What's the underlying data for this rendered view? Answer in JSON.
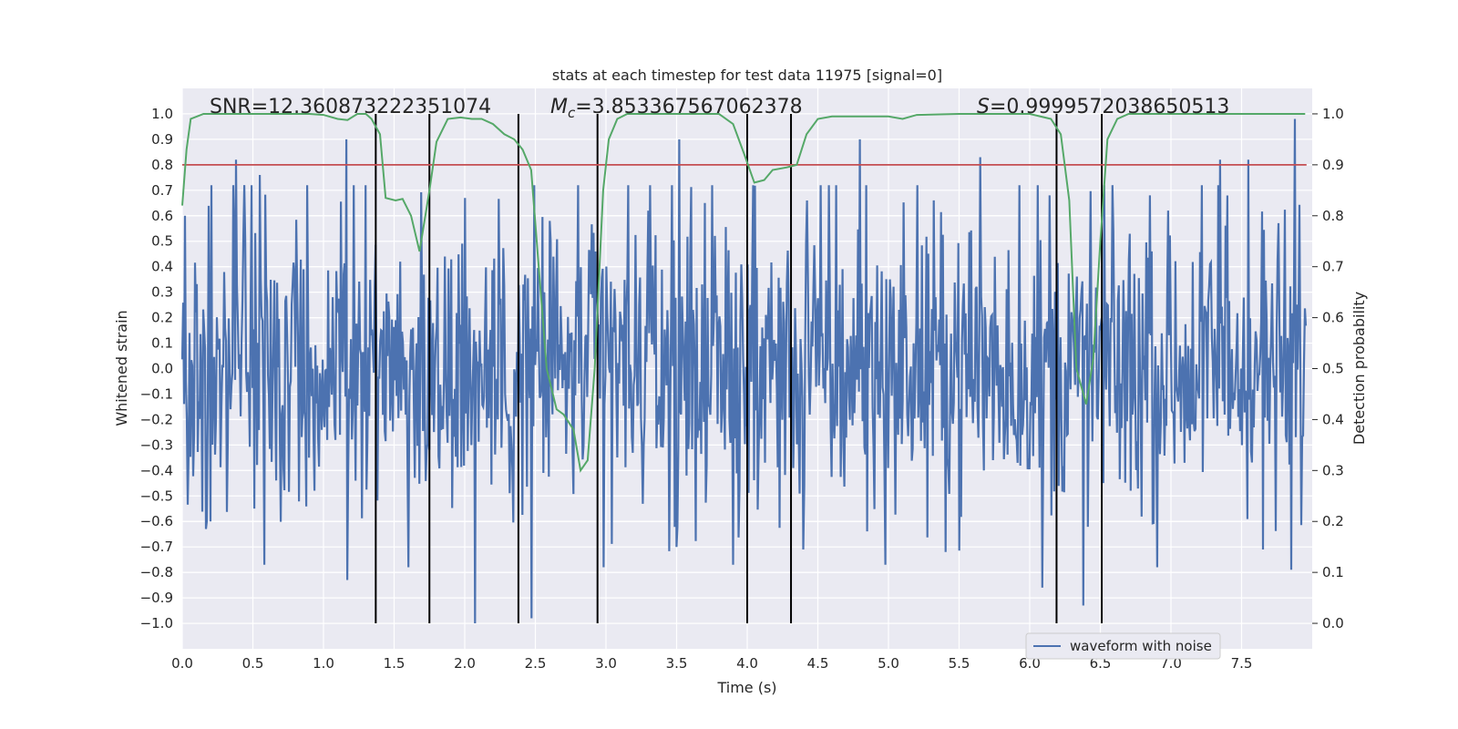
{
  "chart_data": {
    "type": "line",
    "title": "stats at each timestep for test data 11975 [signal=0]",
    "xlabel": "Time (s)",
    "ylabel": "Whitened strain",
    "y2label": "Detection probability",
    "xlim": [
      0.0,
      8.0
    ],
    "ylim": [
      -1.1,
      1.1
    ],
    "y2lim": [
      -0.05,
      1.05
    ],
    "xticks": [
      "0.0",
      "0.5",
      "1.0",
      "1.5",
      "2.0",
      "2.5",
      "3.0",
      "3.5",
      "4.0",
      "4.5",
      "5.0",
      "5.5",
      "6.0",
      "6.5",
      "7.0",
      "7.5"
    ],
    "yticks": [
      "−1.0",
      "−0.9",
      "−0.8",
      "−0.7",
      "−0.6",
      "−0.5",
      "−0.4",
      "−0.3",
      "−0.2",
      "−0.1",
      "0.0",
      "0.1",
      "0.2",
      "0.3",
      "0.4",
      "0.5",
      "0.6",
      "0.7",
      "0.8",
      "0.9",
      "1.0"
    ],
    "y2ticks": [
      "0.0",
      "0.1",
      "0.2",
      "0.3",
      "0.4",
      "0.5",
      "0.6",
      "0.7",
      "0.8",
      "0.9",
      "1.0"
    ],
    "grid": true,
    "legend": {
      "position": "lower-right",
      "entries": [
        "waveform with noise"
      ]
    },
    "annotations": {
      "snr": "SNR=12.360873222351074",
      "mc_symbol": "M",
      "mc_sub": "c",
      "mc_value": "=3.853367567062378",
      "s_symbol": "S",
      "s_value": "=0.9999572038650513"
    },
    "threshold": 0.9,
    "vertical_lines": [
      1.37,
      1.75,
      2.38,
      2.94,
      4.0,
      4.31,
      6.19,
      6.51
    ],
    "colors": {
      "waveform": "#4c72b0",
      "probability": "#55a868",
      "threshold": "#c44e52",
      "markers": "#000000",
      "background": "#eaeaf2"
    },
    "series": [
      {
        "name": "waveform with noise",
        "note_values": "dense noisy strain signal, envelope approx ±0.45 with spikes to ±1.0",
        "peaks_positive": [
          [
            0.02,
            0.6
          ],
          [
            0.38,
            0.82
          ],
          [
            0.55,
            0.76
          ],
          [
            1.16,
            0.9
          ],
          [
            1.3,
            0.72
          ],
          [
            2.0,
            0.67
          ],
          [
            2.6,
            0.58
          ],
          [
            3.3,
            0.62
          ],
          [
            3.52,
            0.9
          ],
          [
            3.7,
            0.65
          ],
          [
            4.42,
            0.66
          ],
          [
            4.8,
            0.9
          ],
          [
            5.65,
            0.83
          ],
          [
            6.14,
            0.68
          ],
          [
            6.85,
            0.68
          ],
          [
            7.35,
            0.82
          ],
          [
            7.55,
            0.82
          ],
          [
            7.88,
            0.98
          ]
        ],
        "peaks_negative": [
          [
            0.2,
            -0.6
          ],
          [
            0.58,
            -0.77
          ],
          [
            1.17,
            -0.83
          ],
          [
            1.6,
            -0.78
          ],
          [
            2.07,
            -1.0
          ],
          [
            2.47,
            -0.98
          ],
          [
            2.98,
            -0.78
          ],
          [
            3.5,
            -0.7
          ],
          [
            3.9,
            -0.77
          ],
          [
            4.4,
            -0.71
          ],
          [
            4.98,
            -0.77
          ],
          [
            6.09,
            -0.86
          ],
          [
            6.38,
            -0.93
          ],
          [
            6.9,
            -0.78
          ],
          [
            7.65,
            -0.71
          ],
          [
            7.85,
            -0.79
          ]
        ]
      },
      {
        "name": "",
        "axis": "right",
        "points": [
          [
            0.0,
            0.82
          ],
          [
            0.03,
            0.93
          ],
          [
            0.06,
            0.99
          ],
          [
            0.15,
            1.0
          ],
          [
            0.5,
            1.0
          ],
          [
            0.9,
            1.0
          ],
          [
            1.0,
            0.998
          ],
          [
            1.1,
            0.99
          ],
          [
            1.17,
            0.988
          ],
          [
            1.24,
            1.0
          ],
          [
            1.3,
            1.0
          ],
          [
            1.34,
            0.99
          ],
          [
            1.4,
            0.96
          ],
          [
            1.44,
            0.835
          ],
          [
            1.51,
            0.83
          ],
          [
            1.56,
            0.833
          ],
          [
            1.62,
            0.8
          ],
          [
            1.68,
            0.73
          ],
          [
            1.75,
            0.85
          ],
          [
            1.8,
            0.945
          ],
          [
            1.88,
            0.99
          ],
          [
            1.97,
            0.993
          ],
          [
            2.05,
            0.99
          ],
          [
            2.12,
            0.99
          ],
          [
            2.2,
            0.98
          ],
          [
            2.28,
            0.96
          ],
          [
            2.35,
            0.95
          ],
          [
            2.41,
            0.93
          ],
          [
            2.47,
            0.89
          ],
          [
            2.58,
            0.5
          ],
          [
            2.65,
            0.42
          ],
          [
            2.7,
            0.41
          ],
          [
            2.77,
            0.38
          ],
          [
            2.82,
            0.3
          ],
          [
            2.87,
            0.32
          ],
          [
            2.92,
            0.5
          ],
          [
            2.98,
            0.85
          ],
          [
            3.02,
            0.95
          ],
          [
            3.08,
            0.99
          ],
          [
            3.15,
            1.0
          ],
          [
            3.5,
            1.0
          ],
          [
            3.8,
            1.0
          ],
          [
            3.9,
            0.98
          ],
          [
            3.98,
            0.92
          ],
          [
            4.05,
            0.865
          ],
          [
            4.12,
            0.87
          ],
          [
            4.18,
            0.89
          ],
          [
            4.28,
            0.895
          ],
          [
            4.35,
            0.9
          ],
          [
            4.42,
            0.96
          ],
          [
            4.5,
            0.99
          ],
          [
            4.6,
            0.995
          ],
          [
            4.9,
            0.995
          ],
          [
            5.0,
            0.995
          ],
          [
            5.1,
            0.99
          ],
          [
            5.2,
            0.998
          ],
          [
            5.5,
            1.0
          ],
          [
            6.0,
            1.0
          ],
          [
            6.15,
            0.99
          ],
          [
            6.22,
            0.96
          ],
          [
            6.28,
            0.83
          ],
          [
            6.33,
            0.5
          ],
          [
            6.4,
            0.43
          ],
          [
            6.45,
            0.52
          ],
          [
            6.5,
            0.75
          ],
          [
            6.55,
            0.95
          ],
          [
            6.62,
            0.99
          ],
          [
            6.7,
            1.0
          ],
          [
            7.0,
            1.0
          ],
          [
            7.5,
            1.0
          ],
          [
            7.95,
            1.0
          ]
        ]
      }
    ]
  }
}
